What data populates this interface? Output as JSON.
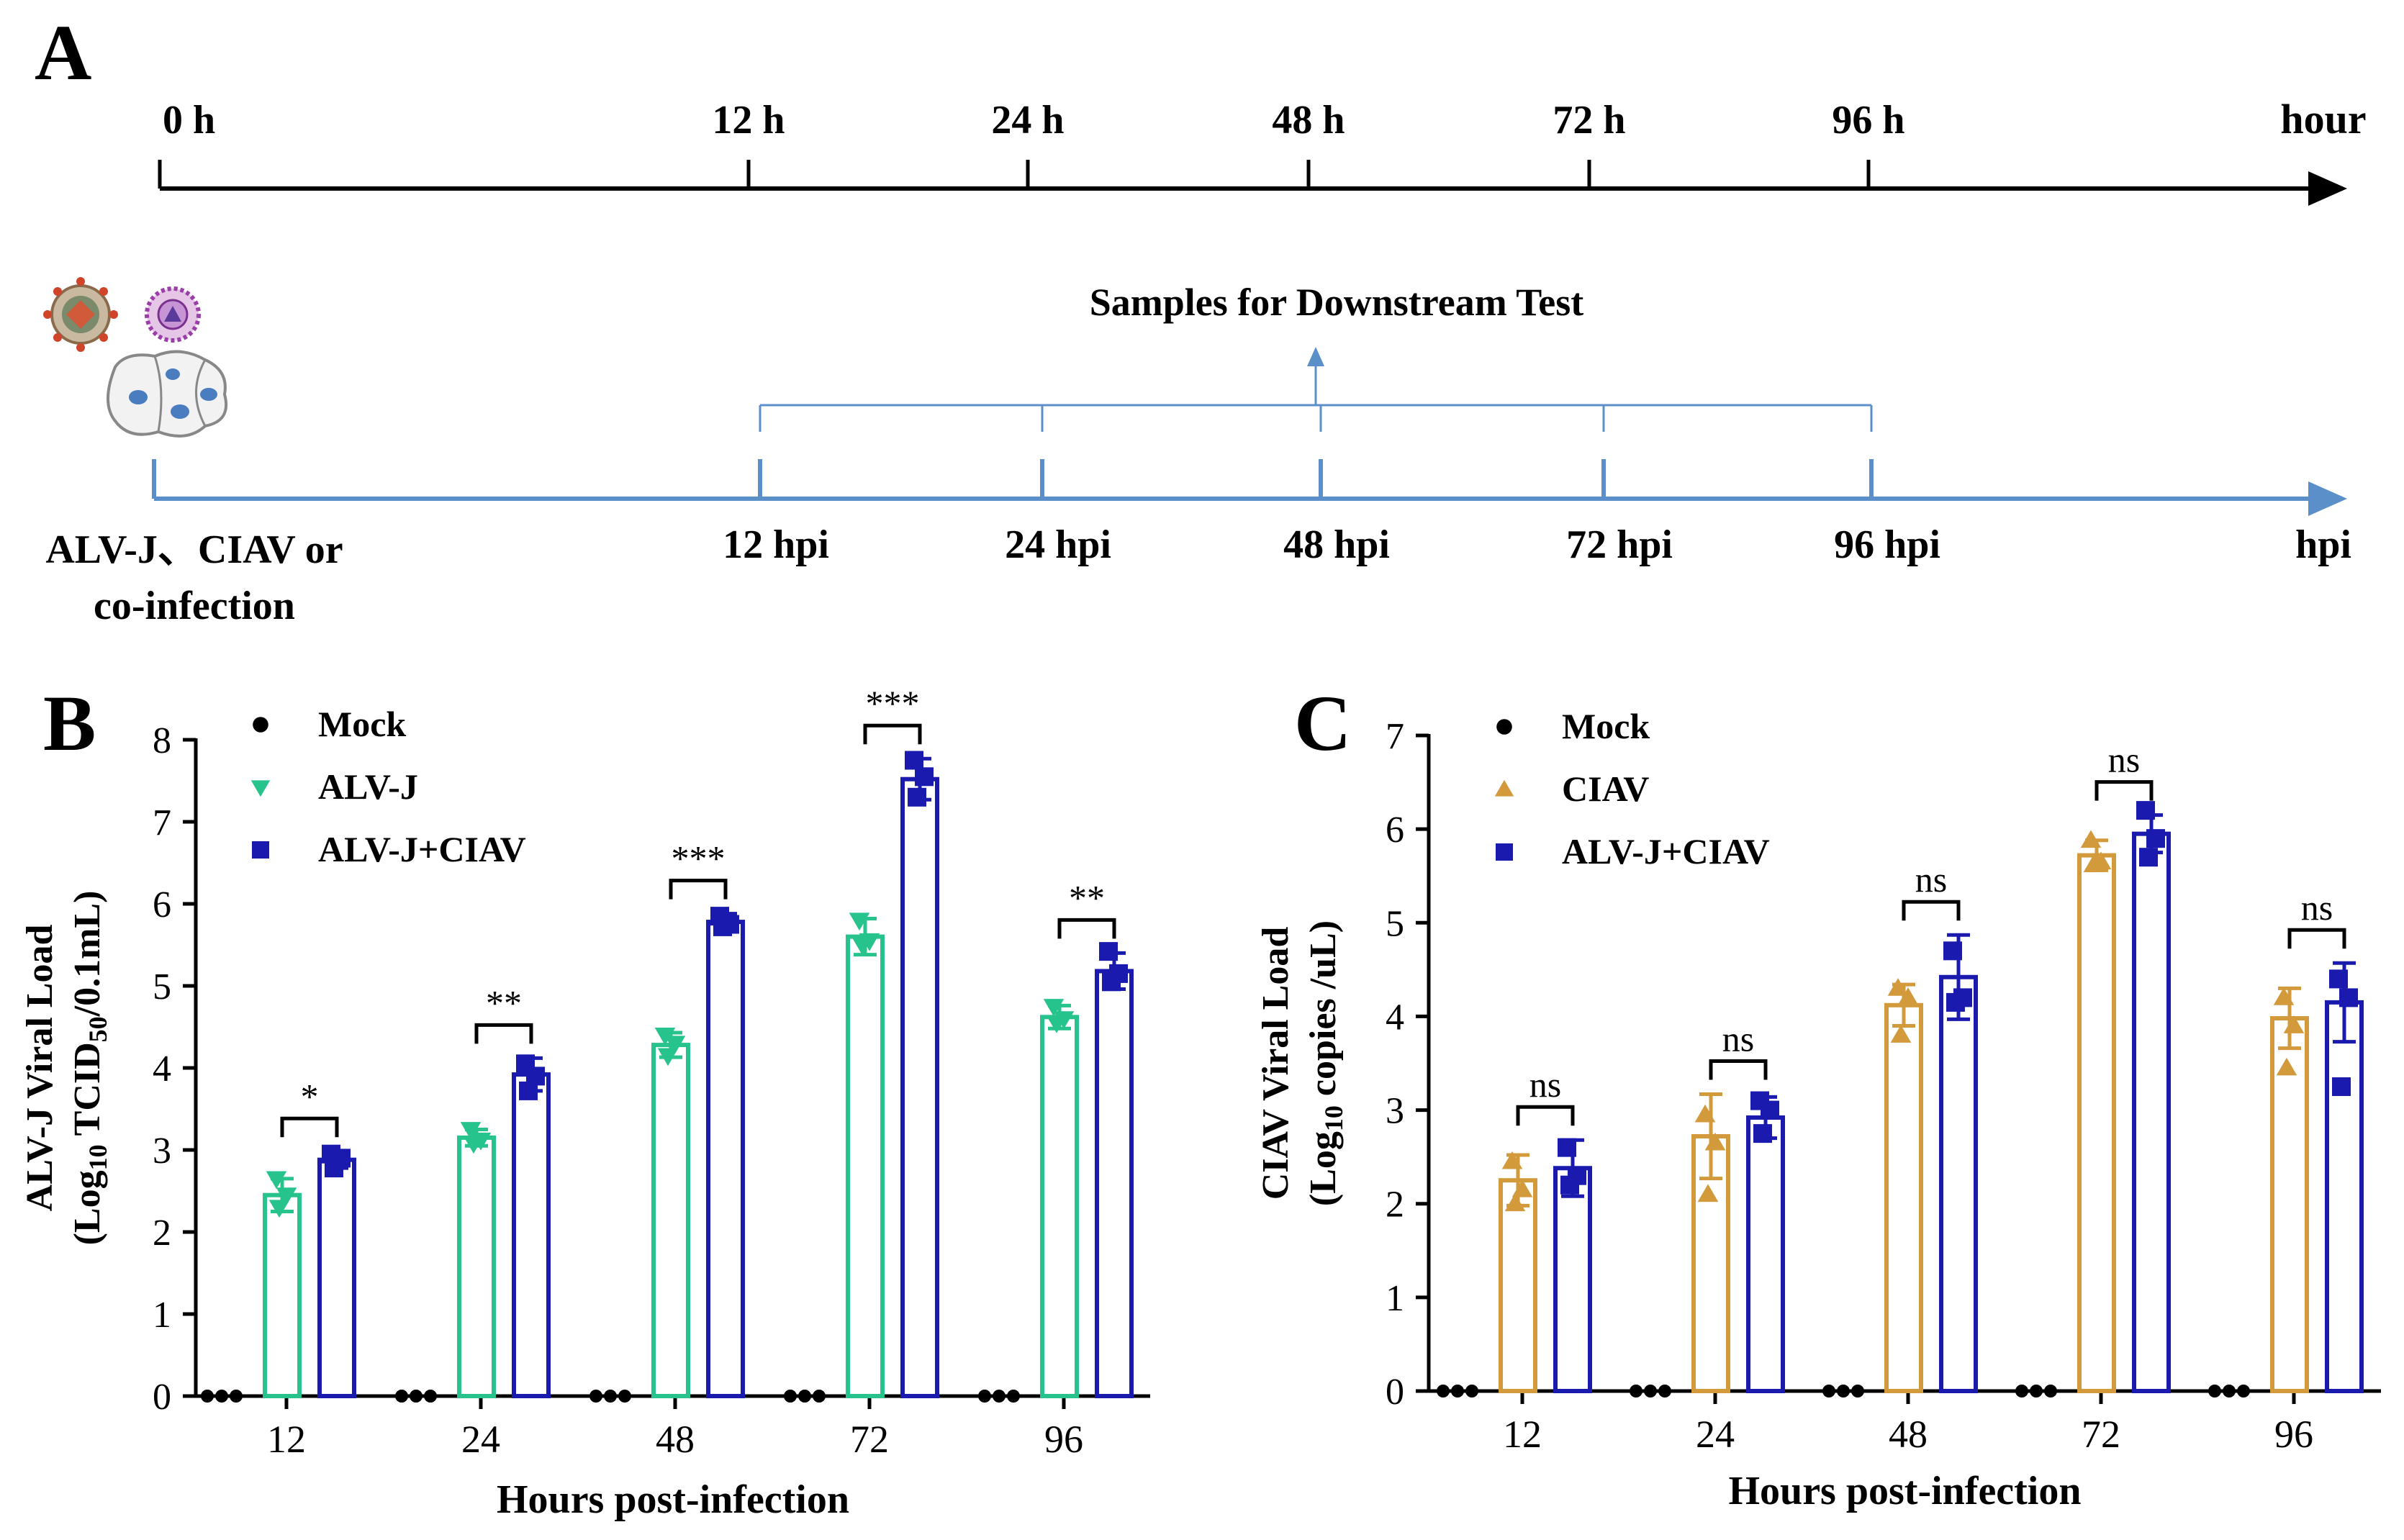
{
  "panels": {
    "A": "A",
    "B": "B",
    "C": "C"
  },
  "timeline_top": {
    "ticks": [
      "0 h",
      "12 h",
      "24 h",
      "48 h",
      "72 h",
      "96 h"
    ],
    "end_label": "hour"
  },
  "timeline_bottom": {
    "samples_label": "Samples for Downstream Test",
    "ticks": [
      "12 hpi",
      "24 hpi",
      "48 hpi",
      "72 hpi",
      "96 hpi"
    ],
    "end_label": "hpi",
    "infection_line1": "ALV-J、CIAV or",
    "infection_line2": "co-infection"
  },
  "colors": {
    "mock": "#000000",
    "alvj": "#27c38c",
    "ciav": "#d39a3c",
    "coinf": "#1a1aaf",
    "timeline_blue": "#5b8fc9"
  },
  "chart_data": [
    {
      "type": "bar",
      "panel": "B",
      "categories": [
        "12",
        "24",
        "48",
        "72",
        "96"
      ],
      "xlabel": "Hours post-infection",
      "ylabel_line1": "ALV-J Viral Load",
      "ylabel_line2_pre": "(Log",
      "ylabel_sub1": "10",
      "ylabel_mid": " TCID",
      "ylabel_sub2": "50",
      "ylabel_post": "/0.1mL)",
      "ylim": [
        0,
        8
      ],
      "yticks": [
        "0",
        "1",
        "2",
        "3",
        "4",
        "5",
        "6",
        "7",
        "8"
      ],
      "series": [
        {
          "name": "Mock",
          "marker": "circle",
          "color": "#000000",
          "values": [
            0,
            0,
            0,
            0,
            0
          ],
          "errors": [
            0,
            0,
            0,
            0,
            0
          ],
          "points": [
            [
              0,
              0,
              0
            ],
            [
              0,
              0,
              0
            ],
            [
              0,
              0,
              0
            ],
            [
              0,
              0,
              0
            ],
            [
              0,
              0,
              0
            ]
          ]
        },
        {
          "name": "ALV-J",
          "marker": "tri-down",
          "color": "#27c38c",
          "values": [
            2.45,
            3.15,
            4.28,
            5.6,
            4.62
          ],
          "errors": [
            0.2,
            0.1,
            0.15,
            0.22,
            0.14
          ],
          "points": [
            [
              2.65,
              2.45,
              2.3
            ],
            [
              3.25,
              3.12,
              3.08
            ],
            [
              4.4,
              4.3,
              4.15
            ],
            [
              5.8,
              5.55,
              5.5
            ],
            [
              4.75,
              4.6,
              4.55
            ]
          ]
        },
        {
          "name": "ALV-J+CIAV",
          "marker": "square",
          "color": "#1a1aaf",
          "values": [
            2.88,
            3.92,
            5.78,
            7.52,
            5.18
          ],
          "errors": [
            0.1,
            0.2,
            0.1,
            0.25,
            0.22
          ],
          "points": [
            [
              2.95,
              2.9,
              2.78
            ],
            [
              4.05,
              3.9,
              3.72
            ],
            [
              5.85,
              5.75,
              5.72
            ],
            [
              7.75,
              7.55,
              7.3
            ],
            [
              5.42,
              5.15,
              5.05
            ]
          ]
        }
      ],
      "significance": [
        "*",
        "**",
        "***",
        "***",
        "**"
      ]
    },
    {
      "type": "bar",
      "panel": "C",
      "categories": [
        "12",
        "24",
        "48",
        "72",
        "96"
      ],
      "xlabel": "Hours post-infection",
      "ylabel_line1": "CIAV Viral Load",
      "ylabel_line2_pre": "(Log",
      "ylabel_sub1": "10",
      "ylabel_post": " copies /uL)",
      "ylim": [
        0,
        7
      ],
      "yticks": [
        "0",
        "1",
        "2",
        "3",
        "4",
        "5",
        "6",
        "7"
      ],
      "series": [
        {
          "name": "Mock",
          "marker": "circle",
          "color": "#000000",
          "values": [
            0,
            0,
            0,
            0,
            0
          ],
          "errors": [
            0,
            0,
            0,
            0,
            0
          ],
          "points": [
            [
              0,
              0,
              0
            ],
            [
              0,
              0,
              0
            ],
            [
              0,
              0,
              0
            ],
            [
              0,
              0,
              0
            ],
            [
              0,
              0,
              0
            ]
          ]
        },
        {
          "name": "CIAV",
          "marker": "tri-up",
          "color": "#d39a3c",
          "values": [
            2.25,
            2.72,
            4.12,
            5.72,
            3.98
          ],
          "errors": [
            0.27,
            0.45,
            0.22,
            0.16,
            0.32
          ],
          "points": [
            [
              2.45,
              2.15,
              2.0
            ],
            [
              2.95,
              2.65,
              2.1
            ],
            [
              4.3,
              4.2,
              3.8
            ],
            [
              5.88,
              5.65,
              5.62
            ],
            [
              4.2,
              3.9,
              3.45
            ]
          ]
        },
        {
          "name": "ALV-J+CIAV",
          "marker": "square",
          "color": "#1a1aaf",
          "values": [
            2.38,
            2.92,
            4.42,
            5.95,
            4.15
          ],
          "errors": [
            0.3,
            0.22,
            0.45,
            0.2,
            0.42
          ],
          "points": [
            [
              2.6,
              2.3,
              2.2
            ],
            [
              3.1,
              3.0,
              2.75
            ],
            [
              4.7,
              4.2,
              4.15
            ],
            [
              6.2,
              5.9,
              5.7
            ],
            [
              4.4,
              4.2,
              3.25
            ]
          ]
        }
      ],
      "significance": [
        "ns",
        "ns",
        "ns",
        "ns",
        "ns"
      ]
    }
  ]
}
